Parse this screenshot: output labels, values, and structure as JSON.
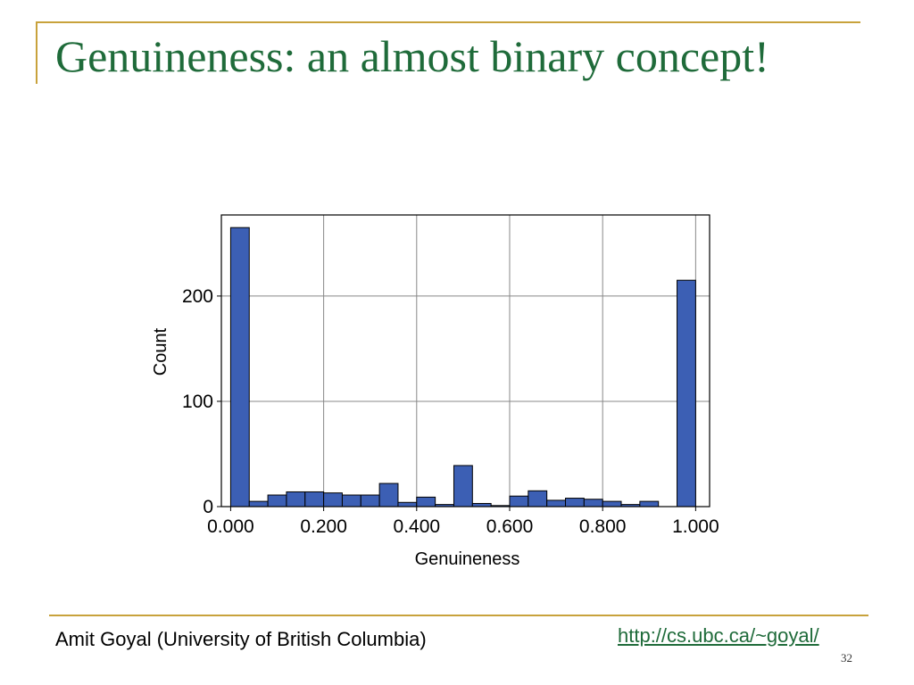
{
  "slide": {
    "title": "Genuineness: an almost binary concept!",
    "footer_author": "Amit Goyal (University of British Columbia)",
    "footer_link": "http://cs.ubc.ca/~goyal/",
    "page_number": "32"
  },
  "colors": {
    "title": "#1f6b3a",
    "accent_rule": "#c8a23c",
    "bar_fill": "#3c5fb4",
    "bar_stroke": "#000000",
    "grid": "#888888"
  },
  "chart_data": {
    "type": "bar",
    "title": "",
    "xlabel": "Genuineness",
    "ylabel": "Count",
    "xlim": [
      -0.02,
      1.03
    ],
    "ylim": [
      0,
      277
    ],
    "x_ticks": [
      0.0,
      0.2,
      0.4,
      0.6,
      0.8,
      1.0
    ],
    "x_tick_labels": [
      "0.000",
      "0.200",
      "0.400",
      "0.600",
      "0.800",
      "1.000"
    ],
    "y_ticks": [
      0,
      100,
      200
    ],
    "y_tick_labels": [
      "0",
      "100",
      "200"
    ],
    "grid": true,
    "bin_width": 0.04,
    "bins": [
      {
        "start": 0.0,
        "count": 265
      },
      {
        "start": 0.04,
        "count": 5
      },
      {
        "start": 0.08,
        "count": 11
      },
      {
        "start": 0.12,
        "count": 14
      },
      {
        "start": 0.16,
        "count": 14
      },
      {
        "start": 0.2,
        "count": 13
      },
      {
        "start": 0.24,
        "count": 11
      },
      {
        "start": 0.28,
        "count": 11
      },
      {
        "start": 0.32,
        "count": 22
      },
      {
        "start": 0.36,
        "count": 4
      },
      {
        "start": 0.4,
        "count": 9
      },
      {
        "start": 0.44,
        "count": 2
      },
      {
        "start": 0.48,
        "count": 39
      },
      {
        "start": 0.52,
        "count": 3
      },
      {
        "start": 0.56,
        "count": 1
      },
      {
        "start": 0.6,
        "count": 10
      },
      {
        "start": 0.64,
        "count": 15
      },
      {
        "start": 0.68,
        "count": 6
      },
      {
        "start": 0.72,
        "count": 8
      },
      {
        "start": 0.76,
        "count": 7
      },
      {
        "start": 0.8,
        "count": 5
      },
      {
        "start": 0.84,
        "count": 2
      },
      {
        "start": 0.88,
        "count": 5
      },
      {
        "start": 0.96,
        "count": 215
      }
    ]
  }
}
